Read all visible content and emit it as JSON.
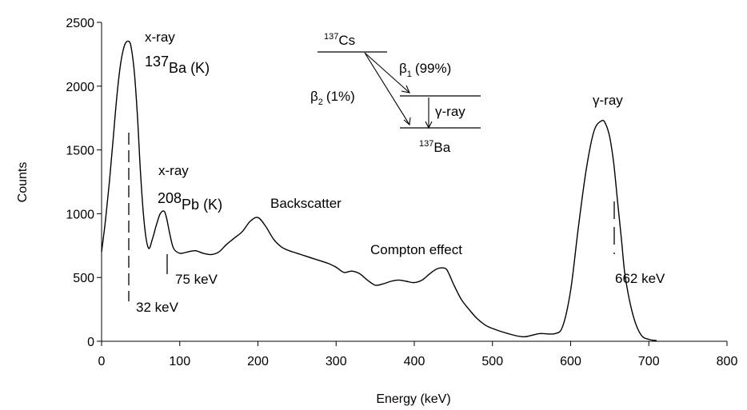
{
  "chart_data": {
    "type": "line",
    "xlabel": "Energy (keV)",
    "ylabel": "Counts",
    "xlim": [
      0,
      800
    ],
    "ylim": [
      0,
      2500
    ],
    "xticks": [
      "0",
      "100",
      "200",
      "300",
      "400",
      "500",
      "600",
      "700",
      "800"
    ],
    "yticks": [
      "0",
      "500",
      "1000",
      "1500",
      "2000",
      "2500"
    ],
    "grid": false,
    "series": [
      {
        "x": [
          0,
          5,
          10,
          15,
          20,
          25,
          30,
          35,
          38,
          42,
          46,
          50,
          55,
          60,
          65,
          70,
          75,
          80,
          83,
          87,
          92,
          100,
          110,
          120,
          130,
          140,
          150,
          160,
          170,
          180,
          190,
          200,
          210,
          220,
          230,
          240,
          250,
          270,
          290,
          300,
          310,
          320,
          330,
          340,
          350,
          360,
          370,
          380,
          390,
          400,
          410,
          420,
          430,
          440,
          445,
          450,
          460,
          470,
          480,
          490,
          500,
          520,
          540,
          560,
          580,
          590,
          600,
          610,
          620,
          630,
          640,
          645,
          650,
          655,
          660,
          665,
          670,
          680,
          690,
          700,
          710
        ],
        "y": [
          700,
          950,
          1250,
          1600,
          1950,
          2200,
          2330,
          2350,
          2300,
          2100,
          1750,
          1300,
          900,
          730,
          800,
          910,
          1000,
          1020,
          970,
          850,
          730,
          690,
          700,
          710,
          690,
          680,
          700,
          760,
          810,
          860,
          940,
          970,
          900,
          800,
          740,
          710,
          690,
          650,
          610,
          580,
          540,
          550,
          530,
          480,
          440,
          450,
          470,
          480,
          470,
          460,
          480,
          530,
          570,
          570,
          520,
          450,
          330,
          250,
          180,
          130,
          100,
          60,
          35,
          60,
          60,
          120,
          400,
          900,
          1350,
          1650,
          1730,
          1700,
          1600,
          1400,
          1100,
          800,
          500,
          200,
          50,
          15,
          5
        ]
      }
    ],
    "annotations": {
      "ba_xray_line1": "x-ray",
      "ba_xray_mass": "137",
      "ba_xray_elem": "Ba (K)",
      "pb_xray_line1": "x-ray",
      "pb_xray_mass": "208",
      "pb_xray_elem": "Pb (K)",
      "backscatter": "Backscatter",
      "compton": "Compton effect",
      "gamma_peak": "γ-ray",
      "kev_32": "32 keV",
      "kev_75": "75 keV",
      "kev_662": "662 keV"
    },
    "decay_scheme": {
      "parent_mass": "137",
      "parent_elem": "Cs",
      "beta1_symbol": "β",
      "beta1_index": "1",
      "beta1_pct": "(99%)",
      "beta2_symbol": "β",
      "beta2_index": "2",
      "beta2_pct": "(1%)",
      "gamma": "γ-ray",
      "daughter_mass": "137",
      "daughter_elem": "Ba"
    }
  }
}
